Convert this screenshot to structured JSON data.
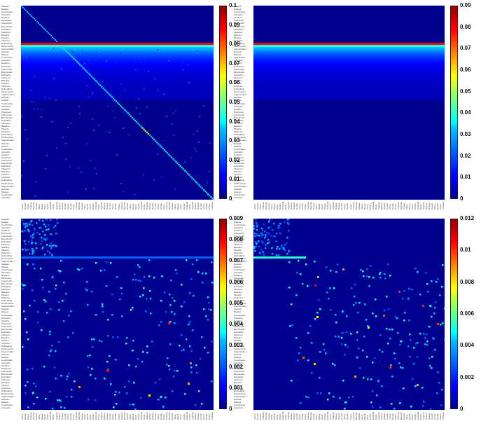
{
  "chart_data": [
    {
      "type": "heatmap",
      "panel": "top-left",
      "colormap": "jet",
      "clim": [
        0,
        0.1
      ],
      "colorbar_ticks": [
        "0.1",
        "0.09",
        "0.08",
        "0.07",
        "0.06",
        "0.05",
        "0.04",
        "0.03",
        "0.02",
        "0.01",
        "0"
      ],
      "structure": {
        "dense_row_band_at_fraction": 0.2,
        "diagonal_strength": 0.03,
        "background_level": 0.005
      }
    },
    {
      "type": "heatmap",
      "panel": "top-right",
      "colormap": "jet",
      "clim": [
        0,
        0.09
      ],
      "colorbar_ticks": [
        "0.09",
        "0.08",
        "0.07",
        "0.06",
        "0.05",
        "0.04",
        "0.03",
        "0.02",
        "0.01",
        "0"
      ],
      "structure": {
        "dense_row_band_at_fraction": 0.2,
        "diagonal_strength": 0,
        "background_level": 0.005
      }
    },
    {
      "type": "heatmap",
      "panel": "bottom-left",
      "colormap": "jet",
      "clim": [
        0,
        0.009
      ],
      "colorbar_ticks": [
        "0.009",
        "0.008",
        "0.007",
        "0.006",
        "0.005",
        "0.004",
        "0.003",
        "0.002",
        "0.001",
        "0"
      ],
      "structure": {
        "top_left_block_fraction": 0.2,
        "sparse_points": 260,
        "hot_points": 6
      }
    },
    {
      "type": "heatmap",
      "panel": "bottom-right",
      "colormap": "jet",
      "clim": [
        0,
        0.012
      ],
      "colorbar_ticks": [
        "0.012",
        "0.01",
        "0.008",
        "0.006",
        "0.004",
        "0.002",
        "0"
      ],
      "structure": {
        "top_left_block_fraction": 0.2,
        "sparse_points": 220,
        "hot_points": 14
      }
    }
  ],
  "axis_labels_tiny": [
    "Network",
    "Dataset",
    "Coordinates",
    "Activation",
    "Gradient",
    "Pretrained",
    "Framework",
    "Benchmark",
    "Evaluation",
    "Inference",
    "Baseline",
    "Pipeline",
    "Optimizer",
    "Embedding",
    "Performance",
    "Augmentation"
  ]
}
